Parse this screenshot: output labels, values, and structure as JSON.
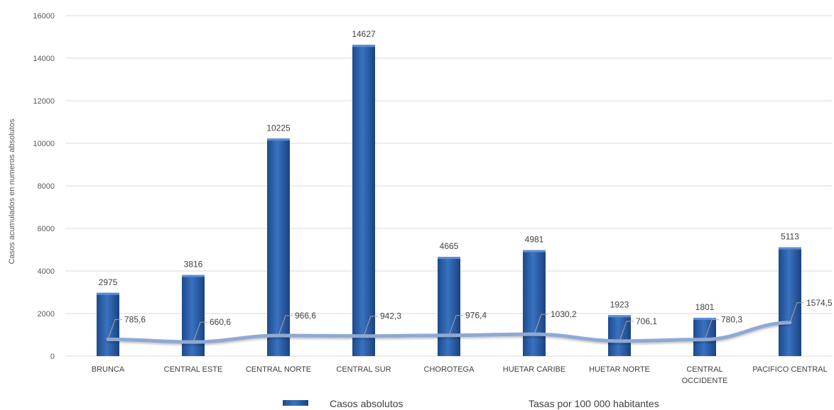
{
  "chart_data": {
    "type": "bar",
    "categories": [
      [
        "BRUNCA"
      ],
      [
        "CENTRAL ESTE"
      ],
      [
        "CENTRAL NORTE"
      ],
      [
        "CENTRAL SUR"
      ],
      [
        "CHOROTEGA"
      ],
      [
        "HUETAR CARIBE"
      ],
      [
        "HUETAR NORTE"
      ],
      [
        "CENTRAL",
        "OCCIDENTE"
      ],
      [
        "PACIFICO CENTRAL"
      ]
    ],
    "series": [
      {
        "name": "Casos absolutos",
        "kind": "bar",
        "color": "#2e5fa6",
        "values": [
          2975,
          3816,
          10225,
          14627,
          4665,
          4981,
          1923,
          1801,
          5113
        ],
        "labels": [
          "2975",
          "3816",
          "10225",
          "14627",
          "4665",
          "4981",
          "1923",
          "1801",
          "5113"
        ]
      },
      {
        "name": "Tasas por 100 000 habitantes",
        "kind": "line",
        "color": "#8ea9d4",
        "values": [
          785.6,
          660.6,
          966.6,
          942.3,
          976.4,
          1030.2,
          706.1,
          780.3,
          1574.5
        ],
        "labels": [
          "785,6",
          "660,6",
          "966,6",
          "942,3",
          "976,4",
          "1030,2",
          "706,1",
          "780,3",
          "1574,5"
        ]
      }
    ],
    "ylabel": "Casos acumulados en numeros absolutos",
    "xlabel": "",
    "ylim": [
      0,
      16000
    ],
    "yticks": [
      0,
      2000,
      4000,
      6000,
      8000,
      10000,
      12000,
      14000,
      16000
    ],
    "grid": true,
    "legend_position": "bottom"
  }
}
